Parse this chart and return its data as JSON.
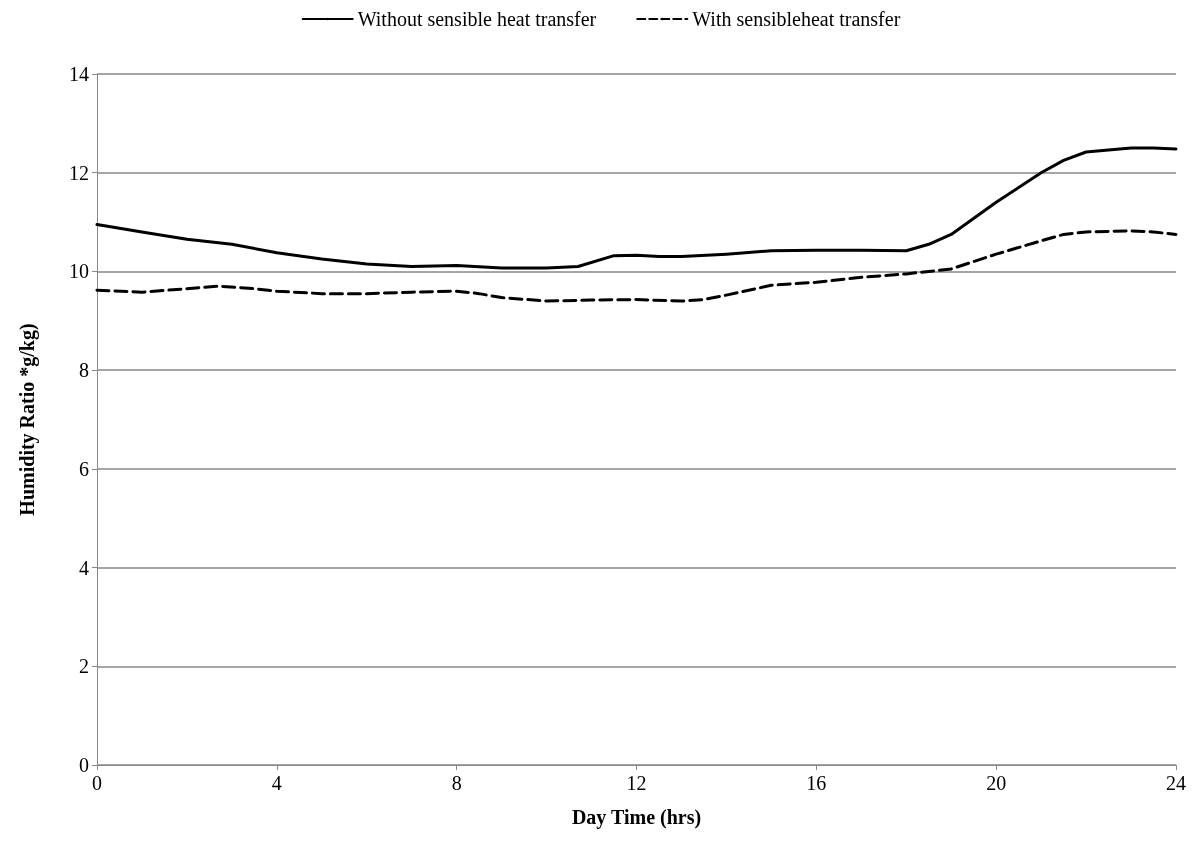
{
  "chart_data": {
    "type": "line",
    "xlabel": "Day Time (hrs)",
    "ylabel": "Humidity Ratio *g/kg)",
    "xlim": [
      0,
      24
    ],
    "xticks": [
      0,
      4,
      8,
      12,
      16,
      20,
      24
    ],
    "ylim": [
      0,
      14
    ],
    "yticks": [
      0,
      2,
      4,
      6,
      8,
      10,
      12,
      14
    ],
    "grid": "y",
    "legend": "top",
    "marker": "none",
    "series": [
      {
        "name": "Without sensible heat transfer",
        "color": "#000000",
        "line_style": "solid",
        "x": [
          0,
          1,
          2,
          3,
          4,
          5,
          6,
          7,
          8,
          9,
          10,
          10.7,
          11.5,
          12,
          12.5,
          13,
          14,
          15,
          16,
          17,
          18,
          18.5,
          19,
          20,
          21,
          21.5,
          22,
          23,
          23.5,
          24
        ],
        "values": [
          10.95,
          10.8,
          10.65,
          10.55,
          10.38,
          10.25,
          10.15,
          10.1,
          10.12,
          10.07,
          10.07,
          10.1,
          10.32,
          10.33,
          10.3,
          10.3,
          10.35,
          10.42,
          10.43,
          10.43,
          10.42,
          10.55,
          10.75,
          11.4,
          12.0,
          12.25,
          12.42,
          12.5,
          12.5,
          12.48
        ]
      },
      {
        "name": "With sensibleheat transfer",
        "color": "#000000",
        "line_style": "dashed",
        "x": [
          0,
          1,
          2,
          2.7,
          3.5,
          4,
          5,
          6,
          7,
          8,
          8.5,
          9,
          10,
          11,
          12,
          13,
          13.5,
          14,
          15,
          16,
          17,
          18,
          19,
          20,
          21,
          21.5,
          22,
          23,
          23.5,
          24
        ],
        "values": [
          9.62,
          9.58,
          9.65,
          9.7,
          9.65,
          9.6,
          9.55,
          9.55,
          9.58,
          9.6,
          9.55,
          9.47,
          9.4,
          9.42,
          9.43,
          9.4,
          9.43,
          9.52,
          9.72,
          9.78,
          9.88,
          9.95,
          10.05,
          10.35,
          10.62,
          10.75,
          10.8,
          10.82,
          10.8,
          10.75
        ]
      }
    ]
  }
}
